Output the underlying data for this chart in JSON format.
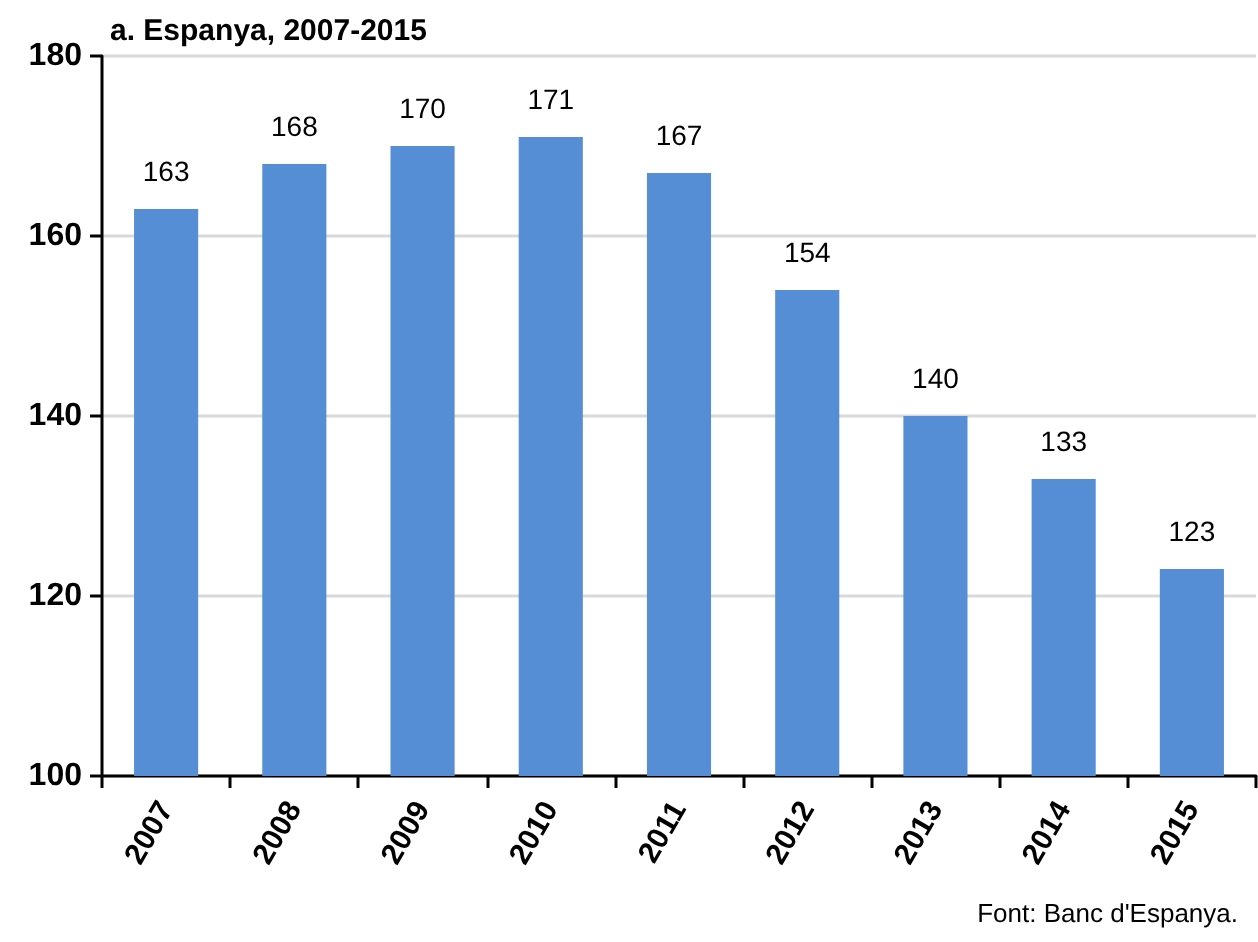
{
  "chart_data": {
    "type": "bar",
    "title": "a. Espanya, 2007-2015",
    "categories": [
      "2007",
      "2008",
      "2009",
      "2010",
      "2011",
      "2012",
      "2013",
      "2014",
      "2015"
    ],
    "values": [
      163,
      168,
      170,
      171,
      167,
      154,
      140,
      133,
      123
    ],
    "color": "#558ed5",
    "ylim": [
      100,
      180
    ],
    "yticks": [
      100,
      120,
      140,
      160,
      180
    ],
    "grid": "y",
    "data_labels": true,
    "annotations": [
      "Font: Banc d'Espanya."
    ]
  }
}
